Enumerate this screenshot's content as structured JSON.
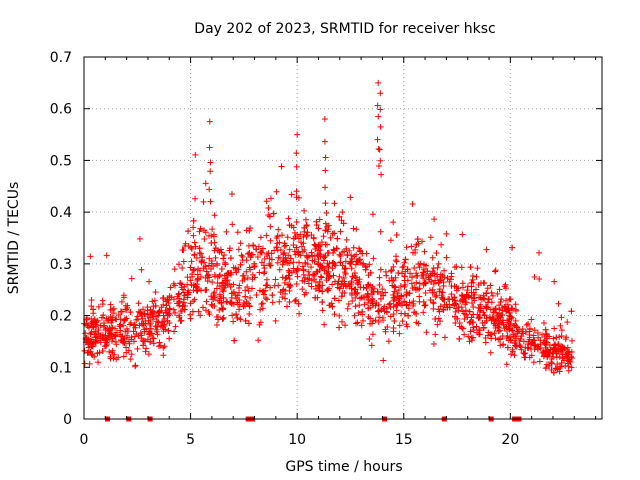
{
  "chart_data": {
    "type": "scatter",
    "title": "Day 202 of 2023, SRMTID for receiver hksc",
    "xlabel": "GPS time / hours",
    "ylabel": "SRMTID / TECUs",
    "xlim": [
      0,
      24.3
    ],
    "ylim": [
      0,
      0.7
    ],
    "xticks": [
      0,
      5,
      10,
      15,
      20
    ],
    "yticks": [
      0,
      0.1,
      0.2,
      0.3,
      0.4,
      0.5,
      0.6,
      0.7
    ],
    "ytick_labels": [
      "0",
      "0.1",
      "0.2",
      "0.3",
      "0.4",
      "0.5",
      "0.6",
      "0.7"
    ],
    "grid": true,
    "marker": "+",
    "color": "#ff0000",
    "series": [
      {
        "name": "SRMTID",
        "n_points": 2200,
        "x_range": [
          0,
          22.9
        ],
        "mean_profile": {
          "x": [
            0,
            1,
            2,
            3,
            4,
            4.5,
            5,
            5.5,
            6,
            7,
            8,
            9,
            10,
            11,
            12,
            13,
            14,
            15,
            16,
            17,
            18,
            19,
            20,
            21,
            22,
            22.9
          ],
          "y": [
            0.16,
            0.17,
            0.17,
            0.18,
            0.2,
            0.25,
            0.28,
            0.3,
            0.27,
            0.25,
            0.28,
            0.3,
            0.31,
            0.3,
            0.28,
            0.27,
            0.22,
            0.26,
            0.26,
            0.24,
            0.22,
            0.2,
            0.18,
            0.15,
            0.13,
            0.12
          ]
        },
        "peaks": [
          {
            "x": 5.9,
            "y": 0.575
          },
          {
            "x": 10.0,
            "y": 0.55
          },
          {
            "x": 11.3,
            "y": 0.58
          },
          {
            "x": 13.8,
            "y": 0.65
          },
          {
            "x": 13.9,
            "y": 0.63
          }
        ]
      }
    ],
    "zero_markers_x": [
      1.1,
      2.1,
      3.1,
      7.7,
      7.9,
      14.1,
      16.9,
      19.1,
      20.2,
      20.4
    ]
  }
}
